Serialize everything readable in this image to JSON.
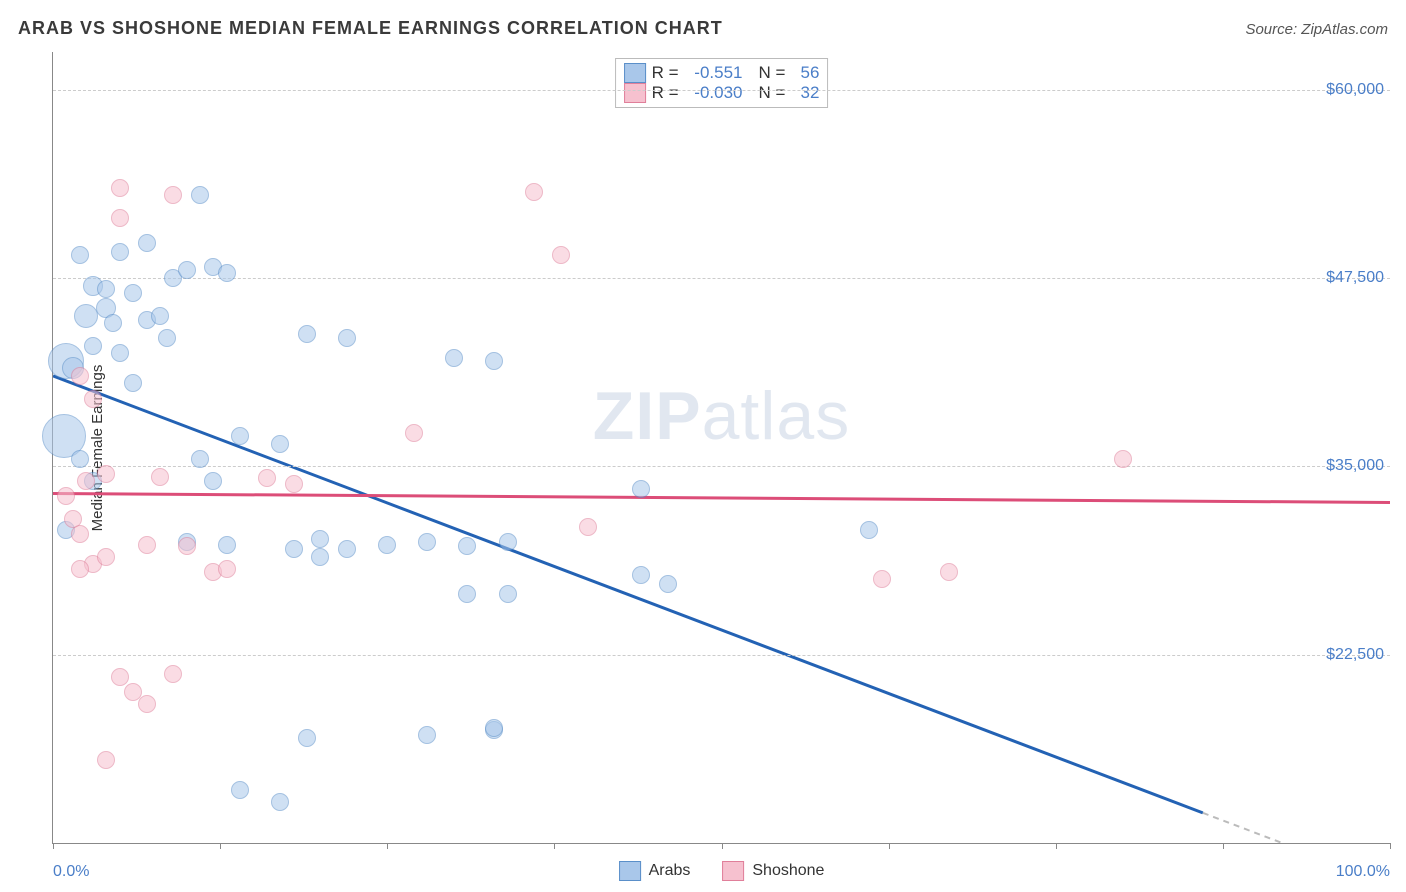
{
  "title": "ARAB VS SHOSHONE MEDIAN FEMALE EARNINGS CORRELATION CHART",
  "source": "Source: ZipAtlas.com",
  "watermark": "ZIPatlas",
  "ylabel": "Median Female Earnings",
  "chart": {
    "type": "scatter",
    "xlim": [
      0,
      100
    ],
    "ylim": [
      10000,
      62500
    ],
    "x_tick_positions": [
      0,
      12.5,
      25,
      37.5,
      50,
      62.5,
      75,
      87.5,
      100
    ],
    "x_label_min": "0.0%",
    "x_label_max": "100.0%",
    "y_ticks": [
      22500,
      35000,
      47500,
      60000
    ],
    "y_tick_labels": [
      "$22,500",
      "$35,000",
      "$47,500",
      "$60,000"
    ],
    "grid_color": "#cccccc",
    "background_color": "#ffffff",
    "axis_color": "#888888",
    "tick_label_color": "#4a7ec8",
    "title_color": "#3a3a3a",
    "title_fontsize": 18,
    "label_fontsize": 15,
    "tick_fontsize": 16
  },
  "series": [
    {
      "name": "Arabs",
      "marker": "circle",
      "fill_color": "#a9c7ea",
      "fill_opacity": 0.55,
      "stroke_color": "#5a8fc9",
      "line_color": "#2362b4",
      "line_width": 3,
      "R": -0.551,
      "R_label": "-0.551",
      "N": 56,
      "regression": {
        "x1": 0,
        "y1": 41000,
        "x2": 86,
        "y2": 12000,
        "dash_tail_to_x": 100
      },
      "points": [
        {
          "x": 2,
          "y": 49000,
          "r": 9
        },
        {
          "x": 3,
          "y": 47000,
          "r": 10
        },
        {
          "x": 2.5,
          "y": 45000,
          "r": 12
        },
        {
          "x": 4,
          "y": 45500,
          "r": 10
        },
        {
          "x": 1,
          "y": 42000,
          "r": 18
        },
        {
          "x": 1.5,
          "y": 41500,
          "r": 11
        },
        {
          "x": 0.8,
          "y": 37000,
          "r": 22
        },
        {
          "x": 3,
          "y": 43000,
          "r": 9
        },
        {
          "x": 4.5,
          "y": 44500,
          "r": 9
        },
        {
          "x": 5,
          "y": 42500,
          "r": 9
        },
        {
          "x": 6,
          "y": 46500,
          "r": 9
        },
        {
          "x": 7,
          "y": 44700,
          "r": 9
        },
        {
          "x": 8,
          "y": 45000,
          "r": 9
        },
        {
          "x": 8.5,
          "y": 43500,
          "r": 9
        },
        {
          "x": 9,
          "y": 47500,
          "r": 9
        },
        {
          "x": 10,
          "y": 48000,
          "r": 9
        },
        {
          "x": 11,
          "y": 53000,
          "r": 9
        },
        {
          "x": 12,
          "y": 48200,
          "r": 9
        },
        {
          "x": 13,
          "y": 47800,
          "r": 9
        },
        {
          "x": 14,
          "y": 37000,
          "r": 9
        },
        {
          "x": 11,
          "y": 35500,
          "r": 9
        },
        {
          "x": 12,
          "y": 34000,
          "r": 9
        },
        {
          "x": 10,
          "y": 30000,
          "r": 9
        },
        {
          "x": 13,
          "y": 29800,
          "r": 9
        },
        {
          "x": 14,
          "y": 13500,
          "r": 9
        },
        {
          "x": 17,
          "y": 36500,
          "r": 9
        },
        {
          "x": 18,
          "y": 29500,
          "r": 9
        },
        {
          "x": 19,
          "y": 17000,
          "r": 9
        },
        {
          "x": 19,
          "y": 43800,
          "r": 9
        },
        {
          "x": 20,
          "y": 30200,
          "r": 9
        },
        {
          "x": 20,
          "y": 29000,
          "r": 9
        },
        {
          "x": 22,
          "y": 43500,
          "r": 9
        },
        {
          "x": 22,
          "y": 29500,
          "r": 9
        },
        {
          "x": 25,
          "y": 29800,
          "r": 9
        },
        {
          "x": 28,
          "y": 30000,
          "r": 9
        },
        {
          "x": 28,
          "y": 17200,
          "r": 9
        },
        {
          "x": 30,
          "y": 42200,
          "r": 9
        },
        {
          "x": 31,
          "y": 29700,
          "r": 9
        },
        {
          "x": 31,
          "y": 26500,
          "r": 9
        },
        {
          "x": 33,
          "y": 42000,
          "r": 9
        },
        {
          "x": 33,
          "y": 17500,
          "r": 9
        },
        {
          "x": 34,
          "y": 26500,
          "r": 9
        },
        {
          "x": 34,
          "y": 30000,
          "r": 9
        },
        {
          "x": 44,
          "y": 33500,
          "r": 9
        },
        {
          "x": 44,
          "y": 27800,
          "r": 9
        },
        {
          "x": 46,
          "y": 27200,
          "r": 9
        },
        {
          "x": 61,
          "y": 30800,
          "r": 9
        },
        {
          "x": 17,
          "y": 12700,
          "r": 9
        },
        {
          "x": 2,
          "y": 35500,
          "r": 9
        },
        {
          "x": 3,
          "y": 34000,
          "r": 9
        },
        {
          "x": 1,
          "y": 30800,
          "r": 9
        },
        {
          "x": 6,
          "y": 40500,
          "r": 9
        },
        {
          "x": 4,
          "y": 46800,
          "r": 9
        },
        {
          "x": 5,
          "y": 49200,
          "r": 9
        },
        {
          "x": 7,
          "y": 49800,
          "r": 9
        },
        {
          "x": 33,
          "y": 17600,
          "r": 9
        }
      ]
    },
    {
      "name": "Shoshone",
      "marker": "circle",
      "fill_color": "#f6c1cf",
      "fill_opacity": 0.55,
      "stroke_color": "#e07f9a",
      "line_color": "#dc4d78",
      "line_width": 3,
      "R": -0.03,
      "R_label": "-0.030",
      "N": 32,
      "regression": {
        "x1": 0,
        "y1": 33200,
        "x2": 100,
        "y2": 32600
      },
      "points": [
        {
          "x": 2,
          "y": 41000,
          "r": 9
        },
        {
          "x": 3,
          "y": 39500,
          "r": 9
        },
        {
          "x": 2.5,
          "y": 34000,
          "r": 9
        },
        {
          "x": 4,
          "y": 34500,
          "r": 9
        },
        {
          "x": 1,
          "y": 33000,
          "r": 9
        },
        {
          "x": 1.5,
          "y": 31500,
          "r": 9
        },
        {
          "x": 2,
          "y": 30500,
          "r": 9
        },
        {
          "x": 3,
          "y": 28500,
          "r": 9
        },
        {
          "x": 4,
          "y": 29000,
          "r": 9
        },
        {
          "x": 5,
          "y": 53500,
          "r": 9
        },
        {
          "x": 5,
          "y": 51500,
          "r": 9
        },
        {
          "x": 5,
          "y": 21000,
          "r": 9
        },
        {
          "x": 6,
          "y": 20000,
          "r": 9
        },
        {
          "x": 4,
          "y": 15500,
          "r": 9
        },
        {
          "x": 7,
          "y": 29800,
          "r": 9
        },
        {
          "x": 7,
          "y": 19200,
          "r": 9
        },
        {
          "x": 8,
          "y": 34300,
          "r": 9
        },
        {
          "x": 9,
          "y": 53000,
          "r": 9
        },
        {
          "x": 9,
          "y": 21200,
          "r": 9
        },
        {
          "x": 10,
          "y": 29700,
          "r": 9
        },
        {
          "x": 12,
          "y": 28000,
          "r": 9
        },
        {
          "x": 13,
          "y": 28200,
          "r": 9
        },
        {
          "x": 16,
          "y": 34200,
          "r": 9
        },
        {
          "x": 18,
          "y": 33800,
          "r": 9
        },
        {
          "x": 27,
          "y": 37200,
          "r": 9
        },
        {
          "x": 36,
          "y": 53200,
          "r": 9
        },
        {
          "x": 38,
          "y": 49000,
          "r": 9
        },
        {
          "x": 40,
          "y": 31000,
          "r": 9
        },
        {
          "x": 62,
          "y": 27500,
          "r": 9
        },
        {
          "x": 67,
          "y": 28000,
          "r": 9
        },
        {
          "x": 80,
          "y": 35500,
          "r": 9
        },
        {
          "x": 2,
          "y": 28200,
          "r": 9
        }
      ]
    }
  ],
  "legend": {
    "R_label": "R =",
    "N_label": "N =",
    "items": [
      {
        "label": "Arabs"
      },
      {
        "label": "Shoshone"
      }
    ]
  }
}
